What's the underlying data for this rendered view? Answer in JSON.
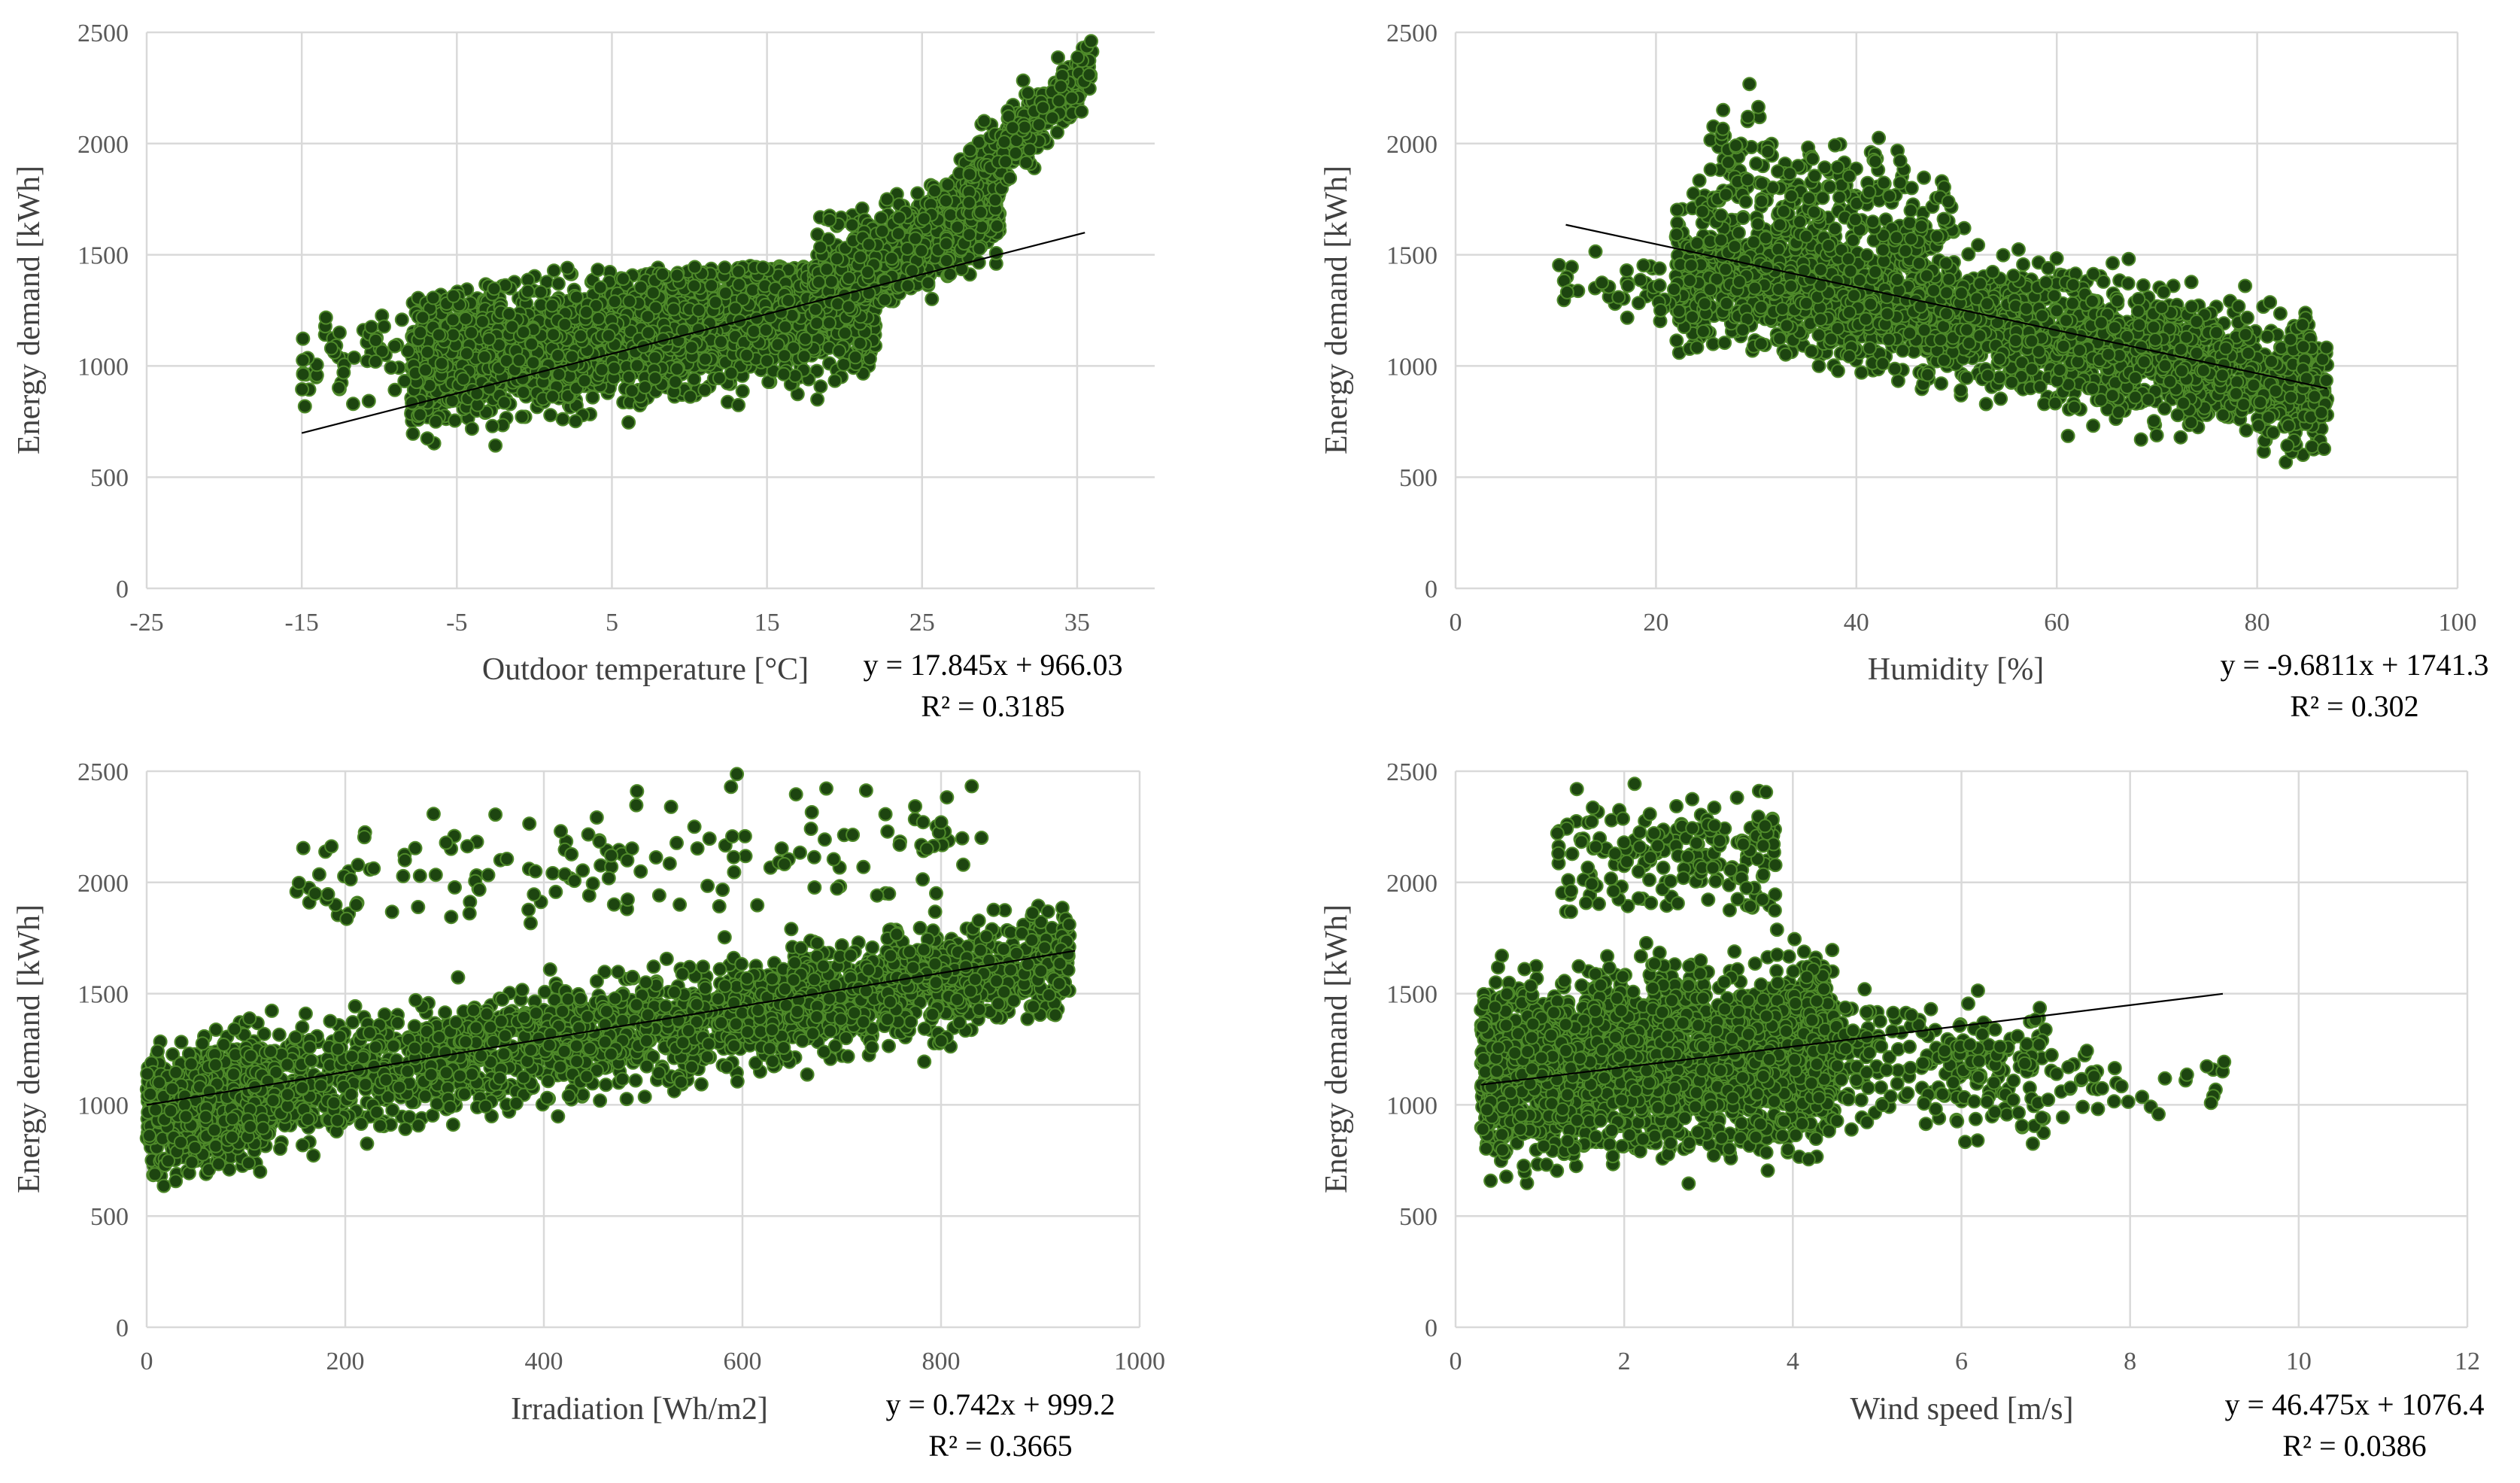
{
  "chart_data": [
    {
      "type": "scatter",
      "id": "temperature",
      "xlabel": "Outdoor temperature [°C]",
      "ylabel": "Energy demand [kWh]",
      "xlim": [
        -25,
        40
      ],
      "ylim": [
        0,
        2500
      ],
      "xticks": [
        -25,
        -15,
        -5,
        5,
        15,
        25,
        35
      ],
      "yticks": [
        0,
        500,
        1000,
        1500,
        2000,
        2500
      ],
      "xtick_labels": [
        "-25",
        "-15",
        "-5",
        "5",
        "15",
        "25",
        "35"
      ],
      "ytick_labels": [
        "0",
        "500",
        "1000",
        "1500",
        "2000",
        "2500"
      ],
      "trendline": {
        "slope": 17.845,
        "intercept": 966.03,
        "x_range": [
          -15,
          35.5
        ]
      },
      "equation": "y = 17.845x + 966.03",
      "r_squared": "R² = 0.3185",
      "point_color": "#1d4510",
      "point_outline": "#4f8a2a",
      "clouds": [
        {
          "n": 2600,
          "x": [
            -8,
            22
          ],
          "y_base": [
            1000,
            1300
          ],
          "y_spread": [
            330,
            380
          ],
          "y_min": 540,
          "y_max": 1450
        },
        {
          "n": 700,
          "x": [
            18,
            30
          ],
          "y_base": [
            1350,
            1750
          ],
          "y_spread": [
            300,
            280
          ],
          "y_min": 560,
          "y_max": 2100
        },
        {
          "n": 260,
          "x": [
            28,
            36
          ],
          "y_base": [
            1800,
            2350
          ],
          "y_spread": [
            260,
            170
          ],
          "y_min": 1600,
          "y_max": 2500
        },
        {
          "n": 60,
          "x": [
            -15,
            -6
          ],
          "y_base": [
            1050,
            1050
          ],
          "y_spread": [
            300,
            300
          ],
          "y_min": 700,
          "y_max": 1380
        }
      ]
    },
    {
      "type": "scatter",
      "id": "humidity",
      "xlabel": "Humidity [%]",
      "ylabel": "Energy demand [kWh]",
      "xlim": [
        0,
        100
      ],
      "ylim": [
        0,
        2500
      ],
      "xticks": [
        0,
        20,
        40,
        60,
        80,
        100
      ],
      "yticks": [
        0,
        500,
        1000,
        1500,
        2000,
        2500
      ],
      "xtick_labels": [
        "0",
        "20",
        "40",
        "60",
        "80",
        "100"
      ],
      "ytick_labels": [
        "0",
        "500",
        "1000",
        "1500",
        "2000",
        "2500"
      ],
      "trendline": {
        "slope": -9.6811,
        "intercept": 1741.3,
        "x_range": [
          11,
          87
        ]
      },
      "equation": "y = -9.6811x + 1741.3",
      "r_squared": "R² = 0.302",
      "point_color": "#1d4510",
      "point_outline": "#4f8a2a",
      "clouds": [
        {
          "n": 2400,
          "x": [
            22,
            87
          ],
          "y_base": [
            1450,
            900
          ],
          "y_spread": [
            380,
            330
          ],
          "y_min": 520,
          "y_max": 1900
        },
        {
          "n": 260,
          "x": [
            25,
            50
          ],
          "y_base": [
            1900,
            1600
          ],
          "y_spread": [
            380,
            330
          ],
          "y_min": 1300,
          "y_max": 2500
        },
        {
          "n": 40,
          "x": [
            10,
            22
          ],
          "y_base": [
            1400,
            1350
          ],
          "y_spread": [
            180,
            180
          ],
          "y_min": 1100,
          "y_max": 1600
        }
      ]
    },
    {
      "type": "scatter",
      "id": "irradiation",
      "xlabel": "Irradiation [Wh/m2]",
      "ylabel": "Energy demand [kWh]",
      "xlim": [
        0,
        1000
      ],
      "ylim": [
        0,
        2500
      ],
      "xticks": [
        0,
        200,
        400,
        600,
        800,
        1000
      ],
      "yticks": [
        0,
        500,
        1000,
        1500,
        2000,
        2500
      ],
      "xtick_labels": [
        "0",
        "200",
        "400",
        "600",
        "800",
        "1000"
      ],
      "ytick_labels": [
        "0",
        "500",
        "1000",
        "1500",
        "2000",
        "2500"
      ],
      "trendline": {
        "slope": 0.742,
        "intercept": 999.2,
        "x_range": [
          0,
          935
        ]
      },
      "equation": "y = 0.742x + 999.2",
      "r_squared": "R² = 0.3665",
      "point_color": "#1d4510",
      "point_outline": "#4f8a2a",
      "clouds": [
        {
          "n": 900,
          "x": [
            0,
            120
          ],
          "y_base": [
            950,
            1050
          ],
          "y_spread": [
            320,
            320
          ],
          "y_min": 480,
          "y_max": 1450
        },
        {
          "n": 2200,
          "x": [
            100,
            930
          ],
          "y_base": [
            1050,
            1650
          ],
          "y_spread": [
            340,
            300
          ],
          "y_min": 540,
          "y_max": 2050
        },
        {
          "n": 160,
          "x": [
            150,
            850
          ],
          "y_base": [
            2000,
            2200
          ],
          "y_spread": [
            350,
            300
          ],
          "y_min": 1800,
          "y_max": 2490
        }
      ]
    },
    {
      "type": "scatter",
      "id": "wind",
      "xlabel": "Wind speed [m/s]",
      "ylabel": "Energy demand [kWh]",
      "xlim": [
        0,
        12
      ],
      "ylim": [
        0,
        2500
      ],
      "xticks": [
        0,
        2,
        4,
        6,
        8,
        10,
        12
      ],
      "yticks": [
        0,
        500,
        1000,
        1500,
        2000,
        2500
      ],
      "xtick_labels": [
        "0",
        "2",
        "4",
        "6",
        "8",
        "10",
        "12"
      ],
      "ytick_labels": [
        "0",
        "500",
        "1000",
        "1500",
        "2000",
        "2500"
      ],
      "trendline": {
        "slope": 46.475,
        "intercept": 1076.4,
        "x_range": [
          0.3,
          9.1
        ]
      },
      "equation": "y = 46.475x + 1076.4",
      "r_squared": "R² = 0.0386",
      "point_color": "#1d4510",
      "point_outline": "#4f8a2a",
      "clouds": [
        {
          "n": 2600,
          "x": [
            0.3,
            4.5
          ],
          "y_base": [
            1150,
            1250
          ],
          "y_spread": [
            480,
            480
          ],
          "y_min": 500,
          "y_max": 1950
        },
        {
          "n": 200,
          "x": [
            1.2,
            3.8
          ],
          "y_base": [
            2100,
            2150
          ],
          "y_spread": [
            330,
            330
          ],
          "y_min": 1850,
          "y_max": 2490
        },
        {
          "n": 260,
          "x": [
            4.2,
            7.0
          ],
          "y_base": [
            1250,
            1150
          ],
          "y_spread": [
            350,
            380
          ],
          "y_min": 500,
          "y_max": 1800
        },
        {
          "n": 40,
          "x": [
            7.0,
            9.2
          ],
          "y_base": [
            1100,
            1100
          ],
          "y_spread": [
            180,
            180
          ],
          "y_min": 900,
          "y_max": 1450
        }
      ]
    }
  ]
}
